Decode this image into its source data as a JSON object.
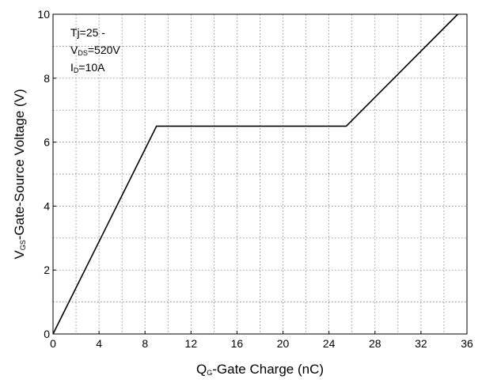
{
  "chart_data": {
    "type": "line",
    "xlabel": "Q<sub>G</sub>-Gate Charge (nC)",
    "xlabel_parts": {
      "main": "Q",
      "sub": "G",
      "rest": "-Gate Charge (nC)"
    },
    "ylabel_parts": {
      "main": "V",
      "sub": "GS",
      "rest": "-Gate-Source Voltage (V)"
    },
    "xlim": [
      0,
      36
    ],
    "ylim": [
      0,
      10
    ],
    "x_ticks": [
      0,
      4,
      8,
      12,
      16,
      20,
      24,
      28,
      32,
      36
    ],
    "x_tick_labels": [
      "0",
      "4",
      "8",
      "12",
      "16",
      "20",
      "24",
      "28",
      "32",
      "36"
    ],
    "y_ticks": [
      0,
      2,
      4,
      6,
      8,
      10
    ],
    "y_tick_labels": [
      "0",
      "2",
      "4",
      "6",
      "8",
      "10"
    ],
    "x_minor_step": 2,
    "y_minor_step": 1,
    "grid": true,
    "series": [
      {
        "x": [
          0,
          9,
          25.5,
          35.2
        ],
        "y": [
          0,
          6.5,
          6.5,
          10
        ],
        "color": "#000000"
      }
    ],
    "annotations": [
      {
        "main": "Tj=25 -",
        "sub": "",
        "rest": ""
      },
      {
        "main": "V",
        "sub": "DS",
        "rest": "=520V"
      },
      {
        "main": "I",
        "sub": "D",
        "rest": "=10A"
      }
    ]
  }
}
